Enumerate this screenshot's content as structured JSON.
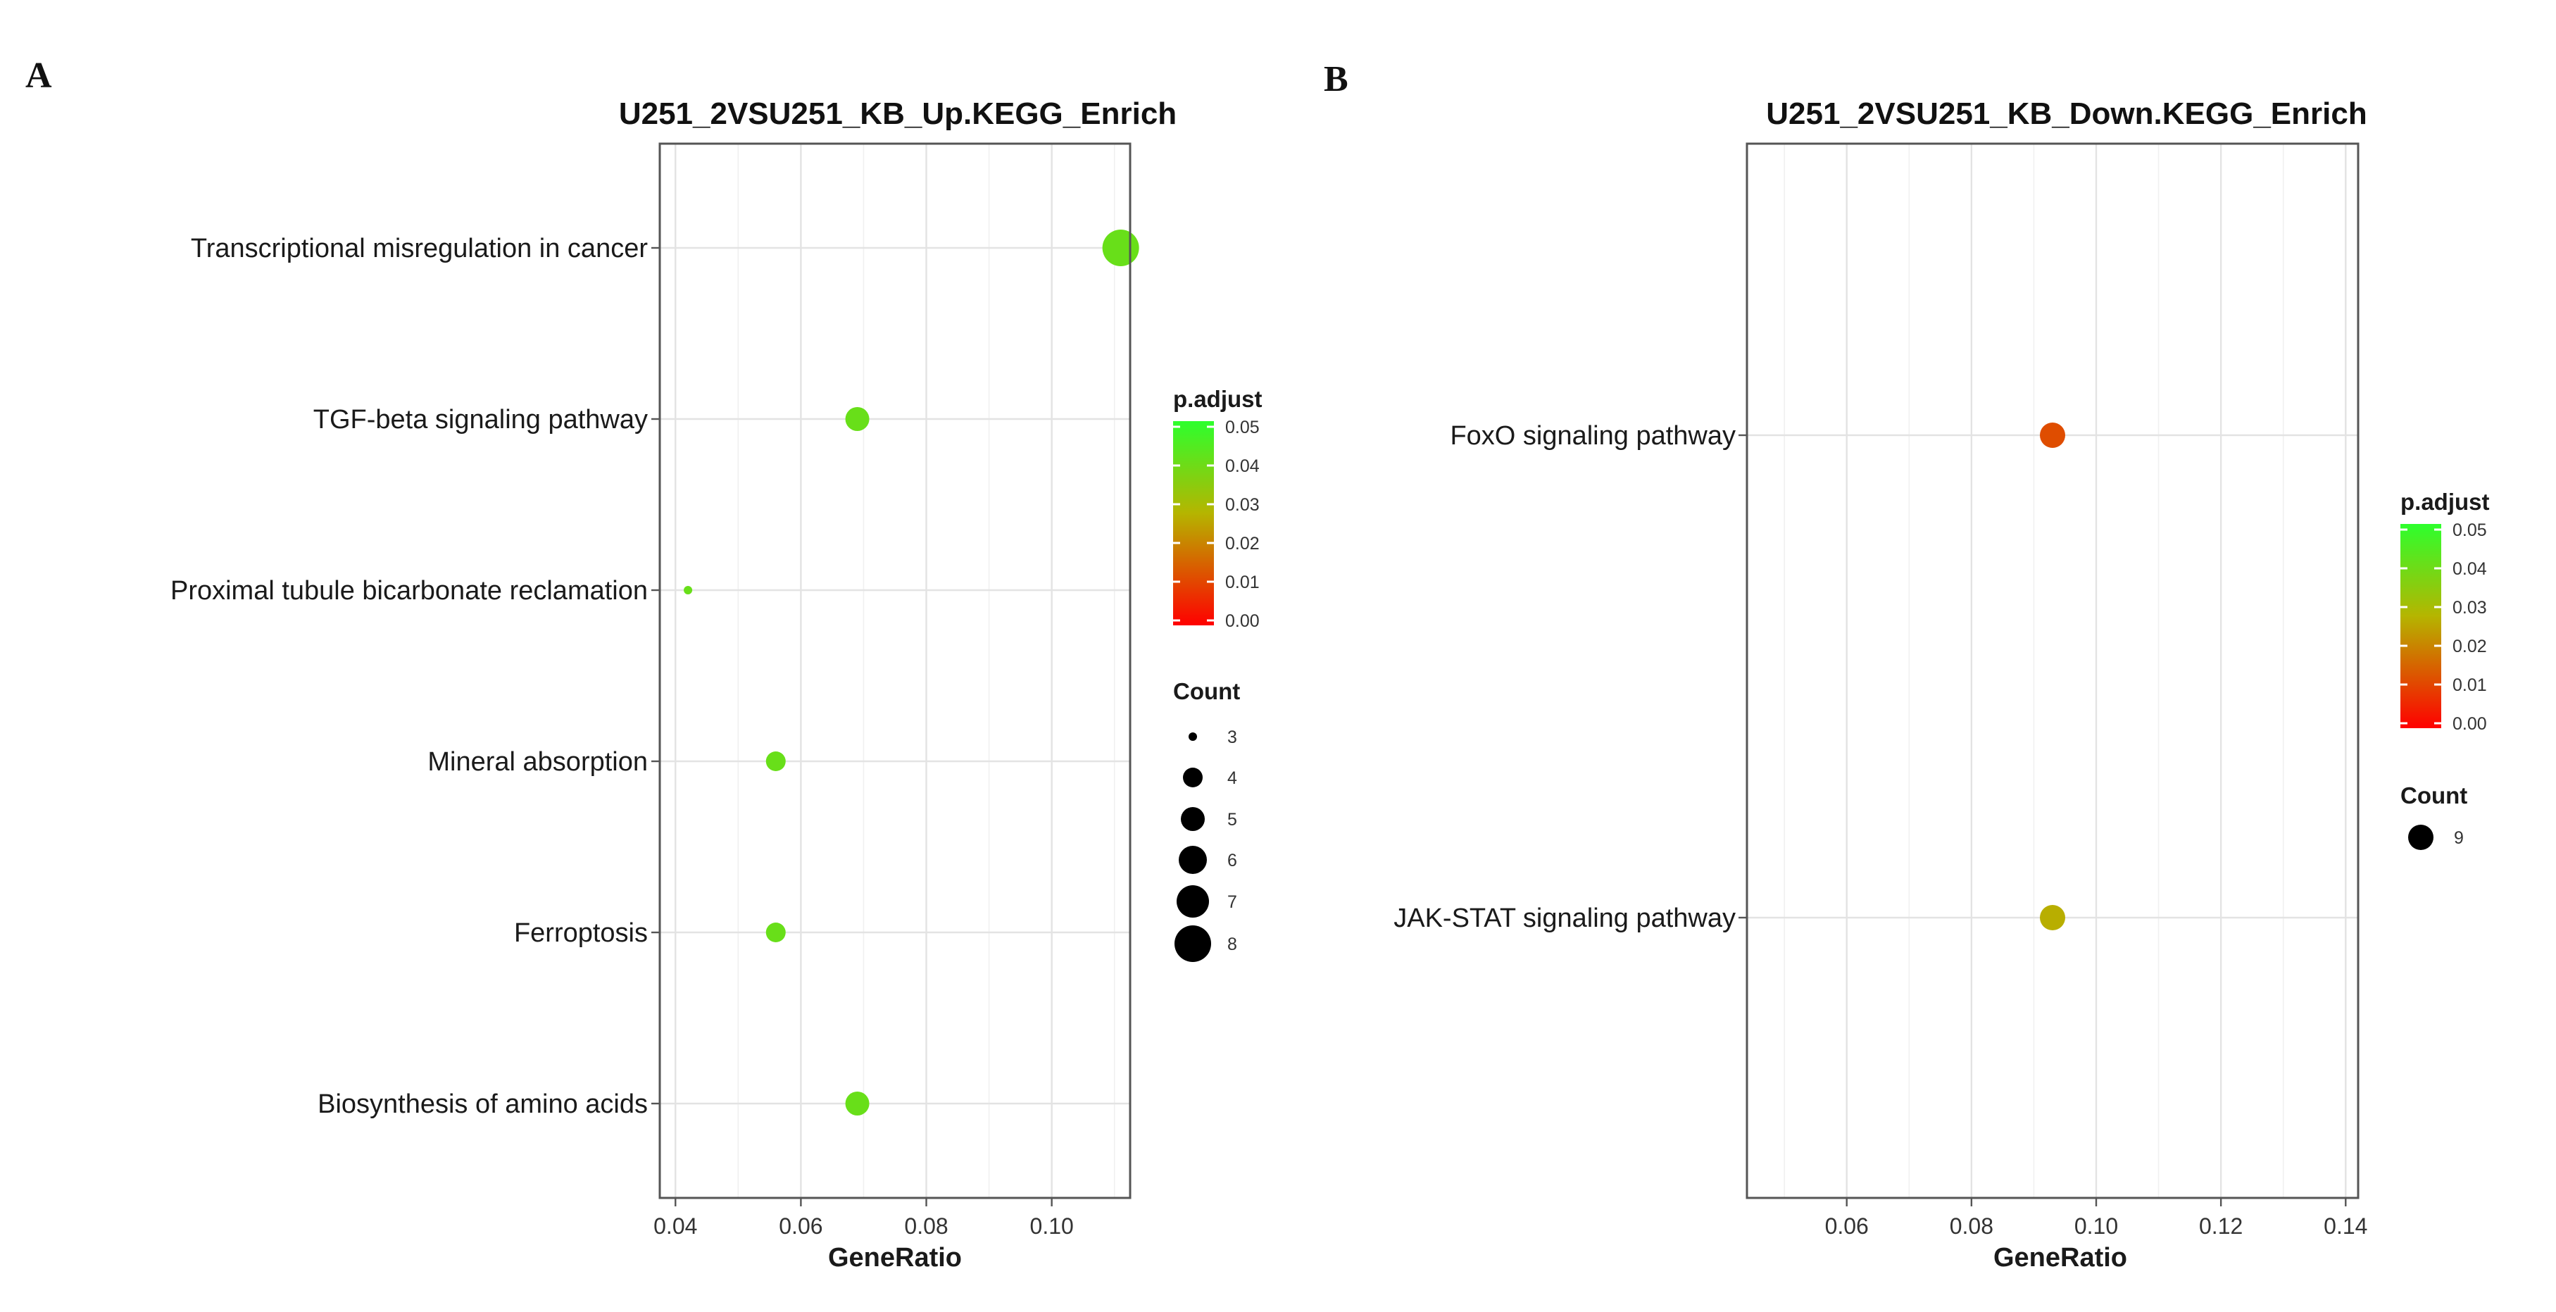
{
  "chart_data": [
    {
      "panel": "A",
      "type": "scatter",
      "title": "U251_2VSU251_KB_Up.KEGG_Enrich",
      "xlabel": "GeneRatio",
      "ylabel": "",
      "xlim": [
        0.0375,
        0.1125
      ],
      "xticks": [
        0.04,
        0.06,
        0.08,
        0.1
      ],
      "xtick_labels": [
        "0.04",
        "0.06",
        "0.08",
        "0.10"
      ],
      "grid": true,
      "categories": [
        "Transcriptional misregulation in cancer",
        "TGF-beta signaling pathway",
        "Proximal tubule bicarbonate reclamation",
        "Mineral absorption",
        "Ferroptosis",
        "Biosynthesis of amino acids"
      ],
      "points": [
        {
          "term": "Transcriptional misregulation in cancer",
          "gene_ratio": 0.111,
          "count": 8,
          "p_adjust": 0.041
        },
        {
          "term": "TGF-beta signaling pathway",
          "gene_ratio": 0.069,
          "count": 5,
          "p_adjust": 0.041
        },
        {
          "term": "Proximal tubule bicarbonate reclamation",
          "gene_ratio": 0.042,
          "count": 3,
          "p_adjust": 0.041
        },
        {
          "term": "Mineral absorption",
          "gene_ratio": 0.056,
          "count": 4,
          "p_adjust": 0.041
        },
        {
          "term": "Ferroptosis",
          "gene_ratio": 0.056,
          "count": 4,
          "p_adjust": 0.041
        },
        {
          "term": "Biosynthesis of amino acids",
          "gene_ratio": 0.069,
          "count": 5,
          "p_adjust": 0.041
        }
      ],
      "color_legend": {
        "title": "p.adjust",
        "ticks": [
          0.05,
          0.04,
          0.03,
          0.02,
          0.01,
          0.0
        ],
        "tick_labels": [
          "0.05",
          "0.04",
          "0.03",
          "0.02",
          "0.01",
          "0.00"
        ],
        "gradient": [
          "#ff0000",
          "#2dff2d"
        ],
        "range": [
          0,
          0.051
        ]
      },
      "size_legend": {
        "title": "Count",
        "values": [
          3,
          4,
          5,
          6,
          7,
          8
        ],
        "labels": [
          "3",
          "4",
          "5",
          "6",
          "7",
          "8"
        ]
      },
      "legend_position": "right"
    },
    {
      "panel": "B",
      "type": "scatter",
      "title": "U251_2VSU251_KB_Down.KEGG_Enrich",
      "xlabel": "GeneRatio",
      "ylabel": "",
      "xlim": [
        0.044,
        0.142
      ],
      "xticks": [
        0.06,
        0.08,
        0.1,
        0.12,
        0.14
      ],
      "xtick_labels": [
        "0.06",
        "0.08",
        "0.10",
        "0.12",
        "0.14"
      ],
      "grid": true,
      "categories": [
        "FoxO signaling pathway",
        "JAK-STAT signaling pathway"
      ],
      "points": [
        {
          "term": "FoxO signaling pathway",
          "gene_ratio": 0.093,
          "count": 9,
          "p_adjust": 0.012
        },
        {
          "term": "JAK-STAT signaling pathway",
          "gene_ratio": 0.093,
          "count": 9,
          "p_adjust": 0.027
        }
      ],
      "color_legend": {
        "title": "p.adjust",
        "ticks": [
          0.05,
          0.04,
          0.03,
          0.02,
          0.01,
          0.0
        ],
        "tick_labels": [
          "0.05",
          "0.04",
          "0.03",
          "0.02",
          "0.01",
          "0.00"
        ],
        "gradient": [
          "#ff0000",
          "#2dff2d"
        ],
        "range": [
          0,
          0.051
        ]
      },
      "size_legend": {
        "title": "Count",
        "values": [
          9
        ],
        "labels": [
          "9"
        ]
      },
      "legend_position": "right"
    }
  ]
}
